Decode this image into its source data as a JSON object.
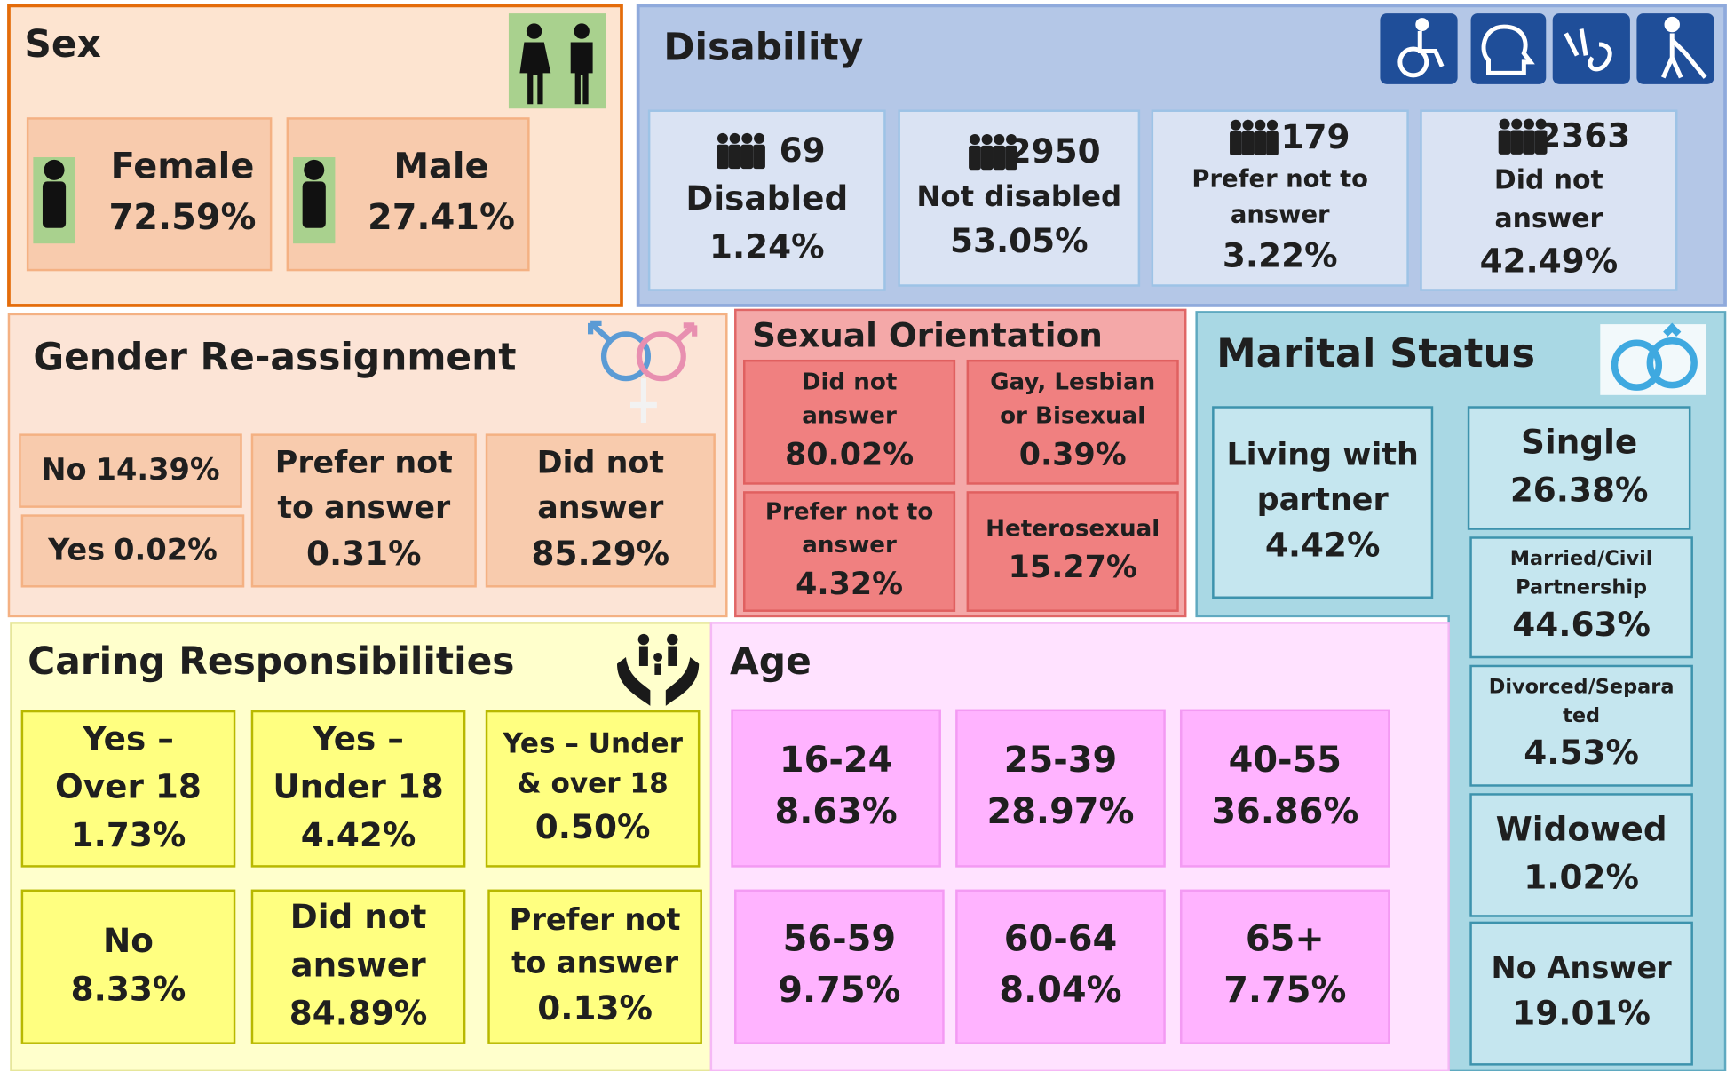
{
  "sections": [
    {
      "title": "Sex",
      "cells": [
        {
          "label": [
            "Female"
          ],
          "value": "72.59%"
        },
        {
          "label": [
            "Male"
          ],
          "value": "27.41%"
        }
      ]
    },
    {
      "title": "Disability",
      "cells": [
        {
          "count": "69",
          "label": [
            "Disabled"
          ],
          "value": "1.24%"
        },
        {
          "count": "2950",
          "label": [
            "Not disabled"
          ],
          "value": "53.05%"
        },
        {
          "count": "179",
          "label": [
            "Prefer not to",
            "answer"
          ],
          "value": "3.22%"
        },
        {
          "count": "2363",
          "label": [
            "Did not",
            "answer"
          ],
          "value": "42.49%"
        }
      ]
    },
    {
      "title": "Gender Re-assignment",
      "cells": [
        {
          "label": [
            "No"
          ],
          "value": "14.39%"
        },
        {
          "label": [
            "Yes"
          ],
          "value": "0.02%"
        },
        {
          "label": [
            "Prefer not",
            "to answer"
          ],
          "value": "0.31%"
        },
        {
          "label": [
            "Did not",
            "answer"
          ],
          "value": "85.29%"
        }
      ]
    },
    {
      "title": "Sexual Orientation",
      "cells": [
        {
          "label": [
            "Did not",
            "answer"
          ],
          "value": "80.02%"
        },
        {
          "label": [
            "Gay, Lesbian",
            "or Bisexual"
          ],
          "value": "0.39%"
        },
        {
          "label": [
            "Prefer not to",
            "answer"
          ],
          "value": "4.32%"
        },
        {
          "label": [
            "Heterosexual"
          ],
          "value": "15.27%"
        }
      ]
    },
    {
      "title": "Marital Status",
      "cells": [
        {
          "label": [
            "Living with",
            "partner"
          ],
          "value": "4.42%"
        },
        {
          "label": [
            "Single"
          ],
          "value": "26.38%"
        },
        {
          "label": [
            "Married/Civil",
            "Partnership"
          ],
          "value": "44.63%"
        },
        {
          "label": [
            "Divorced/Separa",
            "ted"
          ],
          "value": "4.53%"
        },
        {
          "label": [
            "Widowed"
          ],
          "value": "1.02%"
        },
        {
          "label": [
            "No Answer"
          ],
          "value": "19.01%"
        }
      ]
    },
    {
      "title": "Caring Responsibilities",
      "cells": [
        {
          "label": [
            "Yes –",
            "Over 18"
          ],
          "value": "1.73%"
        },
        {
          "label": [
            "Yes –",
            "Under 18"
          ],
          "value": "4.42%"
        },
        {
          "label": [
            "Yes – Under",
            "& over 18"
          ],
          "value": "0.50%"
        },
        {
          "label": [
            "No"
          ],
          "value": "8.33%"
        },
        {
          "label": [
            "Did not",
            "answer"
          ],
          "value": "84.89%"
        },
        {
          "label": [
            "Prefer not",
            "to answer"
          ],
          "value": "0.13%"
        }
      ]
    },
    {
      "title": "Age",
      "cells": [
        {
          "label": [
            "16-24"
          ],
          "value": "8.63%"
        },
        {
          "label": [
            "25-39"
          ],
          "value": "28.97%"
        },
        {
          "label": [
            "40-55"
          ],
          "value": "36.86%"
        },
        {
          "label": [
            "56-59"
          ],
          "value": "9.75%"
        },
        {
          "label": [
            "60-64"
          ],
          "value": "8.04%"
        },
        {
          "label": [
            "65+"
          ],
          "value": "7.75%"
        }
      ]
    }
  ]
}
